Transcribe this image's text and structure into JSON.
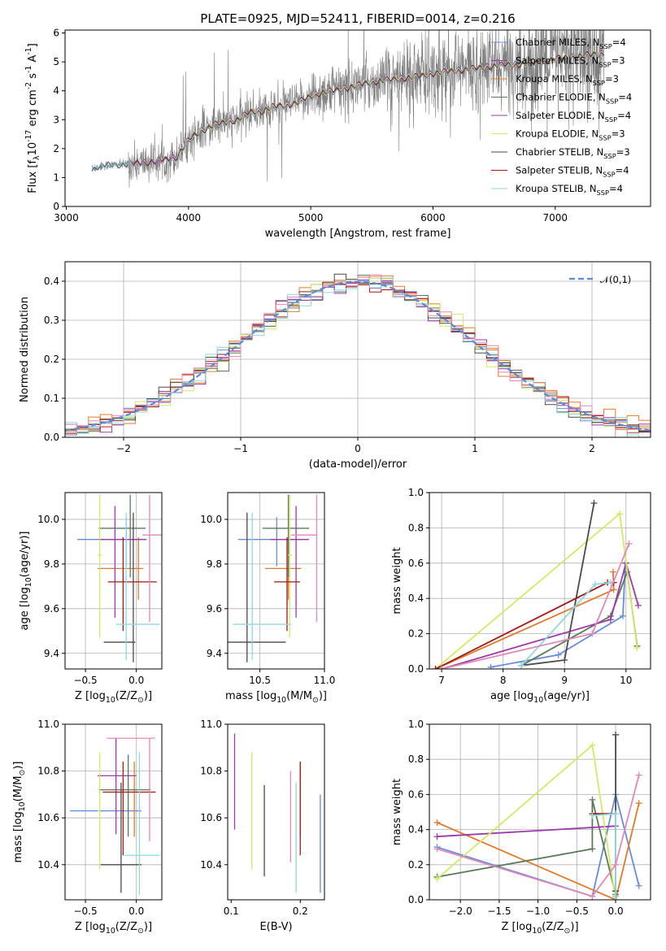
{
  "figure": {
    "title": "PLATE=0925, MJD=52411, FIBERID=0014, z=0.216"
  },
  "colors": [
    "#6a8bd8",
    "#e07b2d",
    "#e07b2d",
    "#5a7a5a",
    "#9b3aa8",
    "#d4e86a",
    "#4a4a4a",
    "#a01818",
    "#8fd8e0",
    "#e08ab8"
  ],
  "models": [
    {
      "name": "Chabrier MILES, N$_{SSP}$=4",
      "color": "#6a8bd8"
    },
    {
      "name": "Salpeter MILES, N$_{SSP}$=3",
      "color": "#9b3aa8"
    },
    {
      "name": "Kroupa MILES, N$_{SSP}$=3",
      "color": "#e07b2d"
    },
    {
      "name": "Chabrier ELODIE, N$_{SSP}$=4",
      "color": "#5a7a5a"
    },
    {
      "name": "Salpeter ELODIE, N$_{SSP}$=4",
      "color": "#9b3aa8"
    },
    {
      "name": "Kroupa ELODIE, N$_{SSP}$=3",
      "color": "#d4e86a"
    },
    {
      "name": "Chabrier STELIB, N$_{SSP}$=3",
      "color": "#4a4a4a"
    },
    {
      "name": "Salpeter STELIB, N$_{SSP}$=4",
      "color": "#a01818"
    },
    {
      "name": "Kroupa STELIB, N$_{SSP}$=4",
      "color": "#8fd8e0"
    }
  ],
  "chart_data": [
    {
      "id": "spectrum",
      "type": "line",
      "title": "PLATE=0925, MJD=52411, FIBERID=0014, z=0.216",
      "xlabel": "wavelength [Angstrom, rest frame]",
      "ylabel": "Flux [f$_\\lambda$10$^{-17}$ erg cm$^{-2}$ s$^{-1}$ A$^{-1}$]",
      "xlim": [
        2990,
        7780
      ],
      "ylim": [
        0,
        6.1
      ],
      "xticks": [
        3000,
        4000,
        5000,
        6000,
        7000
      ],
      "yticks": [
        0,
        1,
        2,
        3,
        4,
        5,
        6
      ],
      "legend": "upper right",
      "continuum": {
        "x": [
          3210,
          3300,
          3400,
          3500,
          3600,
          3700,
          3800,
          3900,
          4000,
          4100,
          4200,
          4300,
          4400,
          4500,
          4600,
          4700,
          4800,
          4900,
          5000,
          5100,
          5200,
          5300,
          5400,
          5500,
          5600,
          5700,
          5800,
          5900,
          6000,
          6100,
          6200,
          6300,
          6400,
          6500,
          6600,
          6700,
          6800,
          6900,
          7000,
          7100,
          7200,
          7300,
          7400
        ],
        "y": [
          1.3,
          1.4,
          1.45,
          1.45,
          1.5,
          1.55,
          1.6,
          1.7,
          2.3,
          2.6,
          2.8,
          2.9,
          3.0,
          3.25,
          3.3,
          3.45,
          3.5,
          3.6,
          3.8,
          3.95,
          4.0,
          4.1,
          4.2,
          4.3,
          4.35,
          4.4,
          4.45,
          4.5,
          4.6,
          4.65,
          4.7,
          4.75,
          4.8,
          4.85,
          4.9,
          4.9,
          4.95,
          5.0,
          5.1,
          5.15,
          5.2,
          5.25,
          5.3
        ]
      }
    },
    {
      "id": "residuals",
      "type": "line",
      "xlabel": "(data-model)/error",
      "ylabel": "Normed distribution",
      "xlim": [
        -2.5,
        2.5
      ],
      "ylim": [
        0,
        0.45
      ],
      "xticks": [
        -2,
        -1,
        0,
        1,
        2
      ],
      "yticks": [
        0.0,
        0.1,
        0.2,
        0.3,
        0.4
      ],
      "grid": true,
      "legend": "upper right",
      "reference": {
        "name": "$\\mathcal{N}(0,1)$",
        "mean": 0,
        "sigma": 1,
        "color": "#5b8ad8"
      }
    },
    {
      "id": "age-vs-Z",
      "type": "scatter",
      "xlabel": "Z [log$_{10}$(Z/Z$_\\odot$)]",
      "ylabel": "age  [log$_{10}$(age/yr)]",
      "xlim": [
        -0.7,
        0.25
      ],
      "ylim": [
        9.33,
        10.12
      ],
      "xticks": [
        -0.5,
        0.0
      ],
      "yticks": [
        9.4,
        9.6,
        9.8,
        10.0
      ],
      "grid": true,
      "points": [
        {
          "x": -0.1,
          "y": 9.91,
          "xerr": [
            0.48,
            0.2
          ],
          "yerr": [
            0.12,
            0.1
          ],
          "c": 0
        },
        {
          "x": 0.02,
          "y": 9.78,
          "xerr": [
            0.4,
            0.05
          ],
          "yerr": [
            0.14,
            0.14
          ],
          "c": 1
        },
        {
          "x": -0.06,
          "y": 9.96,
          "xerr": [
            0.31,
            0.15
          ],
          "yerr": [
            0.22,
            0.15
          ],
          "c": 3
        },
        {
          "x": -0.21,
          "y": 9.91,
          "xerr": [
            0.16,
            0.31
          ],
          "yerr": [
            0.35,
            0.15
          ],
          "c": 4
        },
        {
          "x": -0.36,
          "y": 9.84,
          "xerr": [
            0.02,
            0.02
          ],
          "yerr": [
            0.37,
            0.27
          ],
          "c": 5
        },
        {
          "x": -0.03,
          "y": 9.45,
          "xerr": [
            0.29,
            0.02
          ],
          "yerr": [
            0.09,
            0.58
          ],
          "c": 6
        },
        {
          "x": -0.13,
          "y": 9.72,
          "xerr": [
            0.15,
            0.33
          ],
          "yerr": [
            0.22,
            0.2
          ],
          "c": 7
        },
        {
          "x": -0.1,
          "y": 9.53,
          "xerr": [
            0.1,
            0.33
          ],
          "yerr": [
            0.16,
            0.5
          ],
          "c": 8
        },
        {
          "x": 0.13,
          "y": 9.93,
          "xerr": [
            0.07,
            0.42
          ],
          "yerr": [
            0.39,
            0.18
          ],
          "c": 9
        }
      ]
    },
    {
      "id": "age-vs-mass",
      "type": "scatter",
      "xlabel": "mass [log$_{10}$(M/M$_\\odot$)]",
      "ylabel": "",
      "xlim": [
        10.25,
        11.0
      ],
      "ylim": [
        9.33,
        10.12
      ],
      "xticks": [
        10.5,
        11.0
      ],
      "yticks": [
        9.4,
        9.6,
        9.8,
        10.0
      ],
      "grid": true,
      "points": [
        {
          "x": 10.63,
          "y": 9.91,
          "xerr": [
            0.3,
            0.2
          ],
          "yerr": [
            0.12,
            0.1
          ],
          "c": 0
        },
        {
          "x": 10.72,
          "y": 9.78,
          "xerr": [
            0.18,
            0.1
          ],
          "yerr": [
            0.14,
            0.14
          ],
          "c": 1
        },
        {
          "x": 10.72,
          "y": 9.96,
          "xerr": [
            0.2,
            0.16
          ],
          "yerr": [
            0.22,
            0.15
          ],
          "c": 3
        },
        {
          "x": 10.78,
          "y": 9.91,
          "xerr": [
            0.2,
            0.1
          ],
          "yerr": [
            0.35,
            0.15
          ],
          "c": 4
        },
        {
          "x": 10.73,
          "y": 9.84,
          "xerr": [
            0.02,
            0.02
          ],
          "yerr": [
            0.37,
            0.27
          ],
          "c": 5
        },
        {
          "x": 10.4,
          "y": 9.45,
          "xerr": [
            0.15,
            0.3
          ],
          "yerr": [
            0.09,
            0.58
          ],
          "c": 6
        },
        {
          "x": 10.71,
          "y": 9.72,
          "xerr": [
            0.1,
            0.1
          ],
          "yerr": [
            0.22,
            0.2
          ],
          "c": 7
        },
        {
          "x": 10.44,
          "y": 9.53,
          "xerr": [
            0.15,
            0.3
          ],
          "yerr": [
            0.16,
            0.5
          ],
          "c": 8
        },
        {
          "x": 10.94,
          "y": 9.93,
          "xerr": [
            0.2,
            0.0
          ],
          "yerr": [
            0.39,
            0.18
          ],
          "c": 9
        }
      ]
    },
    {
      "id": "weight-vs-age",
      "type": "line",
      "xlabel": "age  [log$_{10}$(age/yr)]",
      "ylabel": "mass weight",
      "xlim": [
        6.8,
        10.4
      ],
      "ylim": [
        0,
        1
      ],
      "xticks": [
        7,
        8,
        9,
        10
      ],
      "yticks": [
        0.0,
        0.2,
        0.4,
        0.6,
        0.8,
        1.0
      ],
      "grid": true,
      "series": [
        {
          "c": 0,
          "x": [
            7.8,
            8.9,
            9.95,
            9.99
          ],
          "y": [
            0.01,
            0.08,
            0.3,
            0.6
          ]
        },
        {
          "c": 1,
          "x": [
            6.9,
            9.8,
            9.79
          ],
          "y": [
            0.0,
            0.45,
            0.55
          ]
        },
        {
          "c": 3,
          "x": [
            8.3,
            9.75,
            10.02,
            10.18
          ],
          "y": [
            0.02,
            0.3,
            0.55,
            0.13
          ]
        },
        {
          "c": 4,
          "x": [
            7.0,
            9.75,
            10.0,
            10.2
          ],
          "y": [
            0.0,
            0.28,
            0.6,
            0.36
          ]
        },
        {
          "c": 5,
          "x": [
            6.9,
            9.9,
            10.18
          ],
          "y": [
            0.0,
            0.88,
            0.12
          ]
        },
        {
          "c": 6,
          "x": [
            8.3,
            9.0,
            9.48
          ],
          "y": [
            0.02,
            0.05,
            0.94
          ]
        },
        {
          "c": 7,
          "x": [
            6.9,
            9.7,
            9.8
          ],
          "y": [
            0.0,
            0.49,
            0.49
          ]
        },
        {
          "c": 8,
          "x": [
            8.3,
            9.5,
            9.75
          ],
          "y": [
            0.02,
            0.48,
            0.49
          ]
        },
        {
          "c": 9,
          "x": [
            7.0,
            9.45,
            10.05
          ],
          "y": [
            0.0,
            0.2,
            0.71
          ]
        }
      ]
    },
    {
      "id": "mass-vs-Z",
      "type": "scatter",
      "xlabel": "Z [log$_{10}$(Z/Z$_\\odot$)]",
      "ylabel": "mass [log$_{10}$(M/M$_\\odot$)]",
      "xlim": [
        -0.7,
        0.25
      ],
      "ylim": [
        10.25,
        11.0
      ],
      "xticks": [
        -0.5,
        0.0
      ],
      "yticks": [
        10.4,
        10.6,
        10.8,
        11.0
      ],
      "grid": true,
      "points": [
        {
          "x": -0.15,
          "y": 10.63,
          "xerr": [
            0.5,
            0.2
          ],
          "yerr": [
            0.0,
            0.0
          ],
          "c": 0
        },
        {
          "x": -0.02,
          "y": 10.72,
          "xerr": [
            0.35,
            0.15
          ],
          "yerr": [
            0.2,
            0.12
          ],
          "c": 1
        },
        {
          "x": -0.08,
          "y": 10.72,
          "xerr": [
            0.27,
            0.22
          ],
          "yerr": [
            0.2,
            0.15
          ],
          "c": 3
        },
        {
          "x": -0.2,
          "y": 10.78,
          "xerr": [
            0.18,
            0.2
          ],
          "yerr": [
            0.25,
            0.16
          ],
          "c": 4
        },
        {
          "x": -0.36,
          "y": 10.63,
          "xerr": [
            0.02,
            0.0
          ],
          "yerr": [
            0.25,
            0.25
          ],
          "c": 5
        },
        {
          "x": -0.15,
          "y": 10.4,
          "xerr": [
            0.2,
            0.2
          ],
          "yerr": [
            0.12,
            0.35
          ],
          "c": 6
        },
        {
          "x": -0.13,
          "y": 10.71,
          "xerr": [
            0.2,
            0.32
          ],
          "yerr": [
            0.27,
            0.13
          ],
          "c": 7
        },
        {
          "x": 0.03,
          "y": 10.44,
          "xerr": [
            0.15,
            0.2
          ],
          "yerr": [
            0.17,
            0.44
          ],
          "c": 8
        },
        {
          "x": 0.13,
          "y": 10.94,
          "xerr": [
            0.42,
            0.05
          ],
          "yerr": [
            0.44,
            0.0
          ],
          "c": 9
        }
      ]
    },
    {
      "id": "mass-vs-ebv",
      "type": "scatter",
      "xlabel": "E(B-V)",
      "ylabel": "",
      "xlim": [
        0.095,
        0.235
      ],
      "ylim": [
        10.25,
        11.0
      ],
      "xticks": [
        0.1,
        0.2
      ],
      "yticks": [
        10.4,
        10.6,
        10.8,
        11.0
      ],
      "points": [
        {
          "x": 0.229,
          "y": 10.5,
          "xerr": [
            0.0,
            0.0
          ],
          "yerr": [
            0.22,
            0.2
          ],
          "c": 0
        },
        {
          "x": 0.2,
          "y": 10.72,
          "xerr": [
            0.0,
            0.0
          ],
          "yerr": [
            0.2,
            0.12
          ],
          "c": 1
        },
        {
          "x": 0.105,
          "y": 10.75,
          "xerr": [
            0.0,
            0.0
          ],
          "yerr": [
            0.2,
            0.21
          ],
          "c": 4
        },
        {
          "x": 0.13,
          "y": 10.63,
          "xerr": [
            0.0,
            0.0
          ],
          "yerr": [
            0.25,
            0.25
          ],
          "c": 5
        },
        {
          "x": 0.148,
          "y": 10.55,
          "xerr": [
            0.0,
            0.0
          ],
          "yerr": [
            0.2,
            0.19
          ],
          "c": 6
        },
        {
          "x": 0.2,
          "y": 10.65,
          "xerr": [
            0.0,
            0.0
          ],
          "yerr": [
            0.21,
            0.19
          ],
          "c": 7
        },
        {
          "x": 0.194,
          "y": 10.55,
          "xerr": [
            0.0,
            0.0
          ],
          "yerr": [
            0.27,
            0.2
          ],
          "c": 8
        },
        {
          "x": 0.186,
          "y": 10.6,
          "xerr": [
            0.0,
            0.0
          ],
          "yerr": [
            0.19,
            0.2
          ],
          "c": 9
        }
      ]
    },
    {
      "id": "weight-vs-Z",
      "type": "line",
      "xlabel": "Z [log$_{10}$(Z/Z$_\\odot$)]",
      "ylabel": "mass weight",
      "xlim": [
        -2.4,
        0.45
      ],
      "ylim": [
        0,
        1
      ],
      "xticks": [
        -2.0,
        -1.5,
        -1.0,
        -0.5,
        0.0
      ],
      "yticks": [
        0.0,
        0.2,
        0.4,
        0.6,
        0.8,
        1.0
      ],
      "grid": true,
      "series": [
        {
          "c": 0,
          "x": [
            -2.3,
            -0.3,
            0.0,
            0.3
          ],
          "y": [
            0.3,
            0.02,
            0.6,
            0.08
          ]
        },
        {
          "c": 1,
          "x": [
            -2.3,
            0.0,
            0.3
          ],
          "y": [
            0.44,
            0.0,
            0.55
          ]
        },
        {
          "c": 3,
          "x": [
            -2.3,
            -0.3,
            -0.3,
            0.0
          ],
          "y": [
            0.13,
            0.29,
            0.57,
            0.03
          ]
        },
        {
          "c": 4,
          "x": [
            -2.3,
            0.0
          ],
          "y": [
            0.36,
            0.42
          ]
        },
        {
          "c": 5,
          "x": [
            -2.3,
            -0.3,
            0.0
          ],
          "y": [
            0.12,
            0.88,
            0.0
          ]
        },
        {
          "c": 6,
          "x": [
            0.0,
            0.0,
            0.0
          ],
          "y": [
            0.05,
            0.94,
            0.02
          ]
        },
        {
          "c": 7,
          "x": [
            -0.3,
            0.0
          ],
          "y": [
            0.49,
            0.49
          ]
        },
        {
          "c": 8,
          "x": [
            -0.3,
            0.0,
            0.0
          ],
          "y": [
            0.48,
            0.49,
            0.02
          ]
        },
        {
          "c": 9,
          "x": [
            -2.3,
            -0.3,
            0.0,
            0.3
          ],
          "y": [
            0.29,
            0.02,
            0.2,
            0.71
          ]
        }
      ]
    }
  ]
}
